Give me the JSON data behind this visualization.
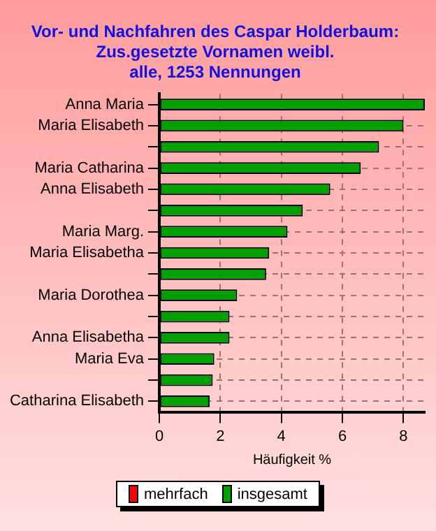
{
  "chart_data": {
    "type": "bar",
    "orientation": "horizontal",
    "title": [
      "Vor- und Nachfahren des Caspar Holderbaum:",
      "Zus.gesetzte Vornamen weibl.",
      "alle, 1253 Nennungen"
    ],
    "xlabel": "Häufigkeit %",
    "categories": [
      "Anna Maria",
      "Maria Elisabeth",
      null,
      "Maria Catharina",
      "Anna Elisabeth",
      null,
      "Maria Marg.",
      "Maria Elisabetha",
      null,
      "Maria Dorothea",
      null,
      "Anna Elisabetha",
      "Maria Eva",
      null,
      "Catharina Elisabeth"
    ],
    "series": [
      {
        "name": "mehrfach",
        "color": "#ff0000",
        "values": [
          null,
          null,
          null,
          null,
          null,
          null,
          null,
          null,
          null,
          null,
          null,
          null,
          null,
          null,
          null
        ]
      },
      {
        "name": "insgesamt",
        "color": "#00a000",
        "values": [
          8.7,
          8.0,
          7.2,
          6.6,
          5.6,
          4.7,
          4.2,
          3.6,
          3.5,
          2.55,
          2.3,
          2.3,
          1.8,
          1.75,
          1.65
        ]
      }
    ],
    "xlim": [
      0,
      8.7
    ],
    "xticks": [
      0,
      2,
      4,
      6,
      8
    ],
    "grid": true,
    "legend": "bottom"
  }
}
